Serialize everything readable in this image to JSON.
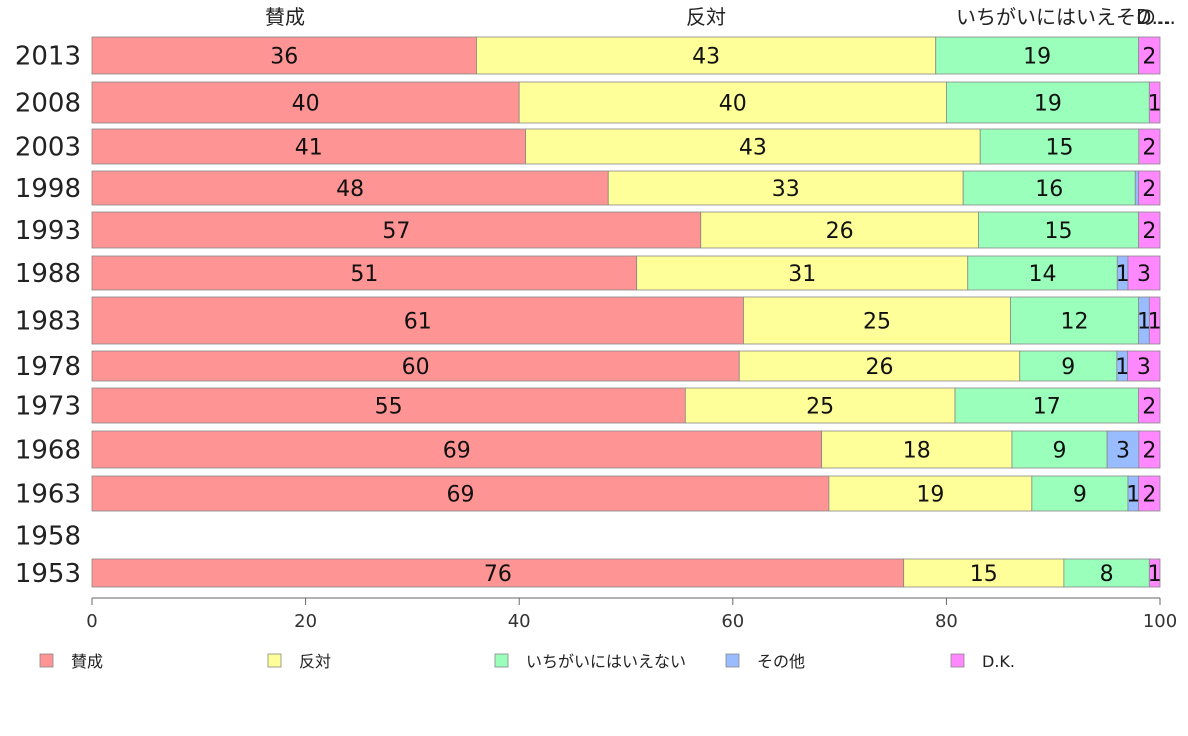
{
  "chart_data": {
    "type": "bar",
    "orientation": "horizontal",
    "stacked": true,
    "categories": [
      "2013",
      "2008",
      "2003",
      "1998",
      "1993",
      "1988",
      "1983",
      "1978",
      "1973",
      "1968",
      "1963",
      "1958",
      "1953"
    ],
    "series": [
      {
        "name": "賛成",
        "color": "#ff9494",
        "values": [
          36,
          40,
          41,
          48,
          57,
          51,
          61,
          60,
          55,
          69,
          69,
          null,
          76
        ]
      },
      {
        "name": "反対",
        "color": "#ffff99",
        "values": [
          43,
          40,
          43,
          33,
          26,
          31,
          25,
          26,
          25,
          18,
          19,
          null,
          15
        ]
      },
      {
        "name": "いちがいにはいえない",
        "color": "#99ffbb",
        "values": [
          19,
          19,
          15,
          16,
          15,
          14,
          12,
          9,
          17,
          9,
          9,
          null,
          8
        ]
      },
      {
        "name": "その他",
        "color": "#99bbff",
        "values": [
          0,
          0,
          0,
          0.3,
          0,
          1,
          1,
          1,
          0,
          3,
          1,
          null,
          0
        ]
      },
      {
        "name": "D.K.",
        "color": "#ff88ff",
        "values": [
          2,
          1,
          2,
          2,
          2,
          3,
          1,
          3,
          2,
          2,
          2,
          null,
          1
        ]
      }
    ],
    "header_labels": [
      "賛成",
      "反対",
      "いちがいにはいえない",
      "その他",
      "D.K."
    ],
    "top_header_texts": [
      "賛成",
      "反対",
      "いちがいにはいえその…",
      "D…"
    ],
    "x_ticks": [
      0,
      20,
      40,
      60,
      80,
      100
    ],
    "xlim": [
      0,
      100
    ],
    "grid": false,
    "legend": "bottom"
  }
}
